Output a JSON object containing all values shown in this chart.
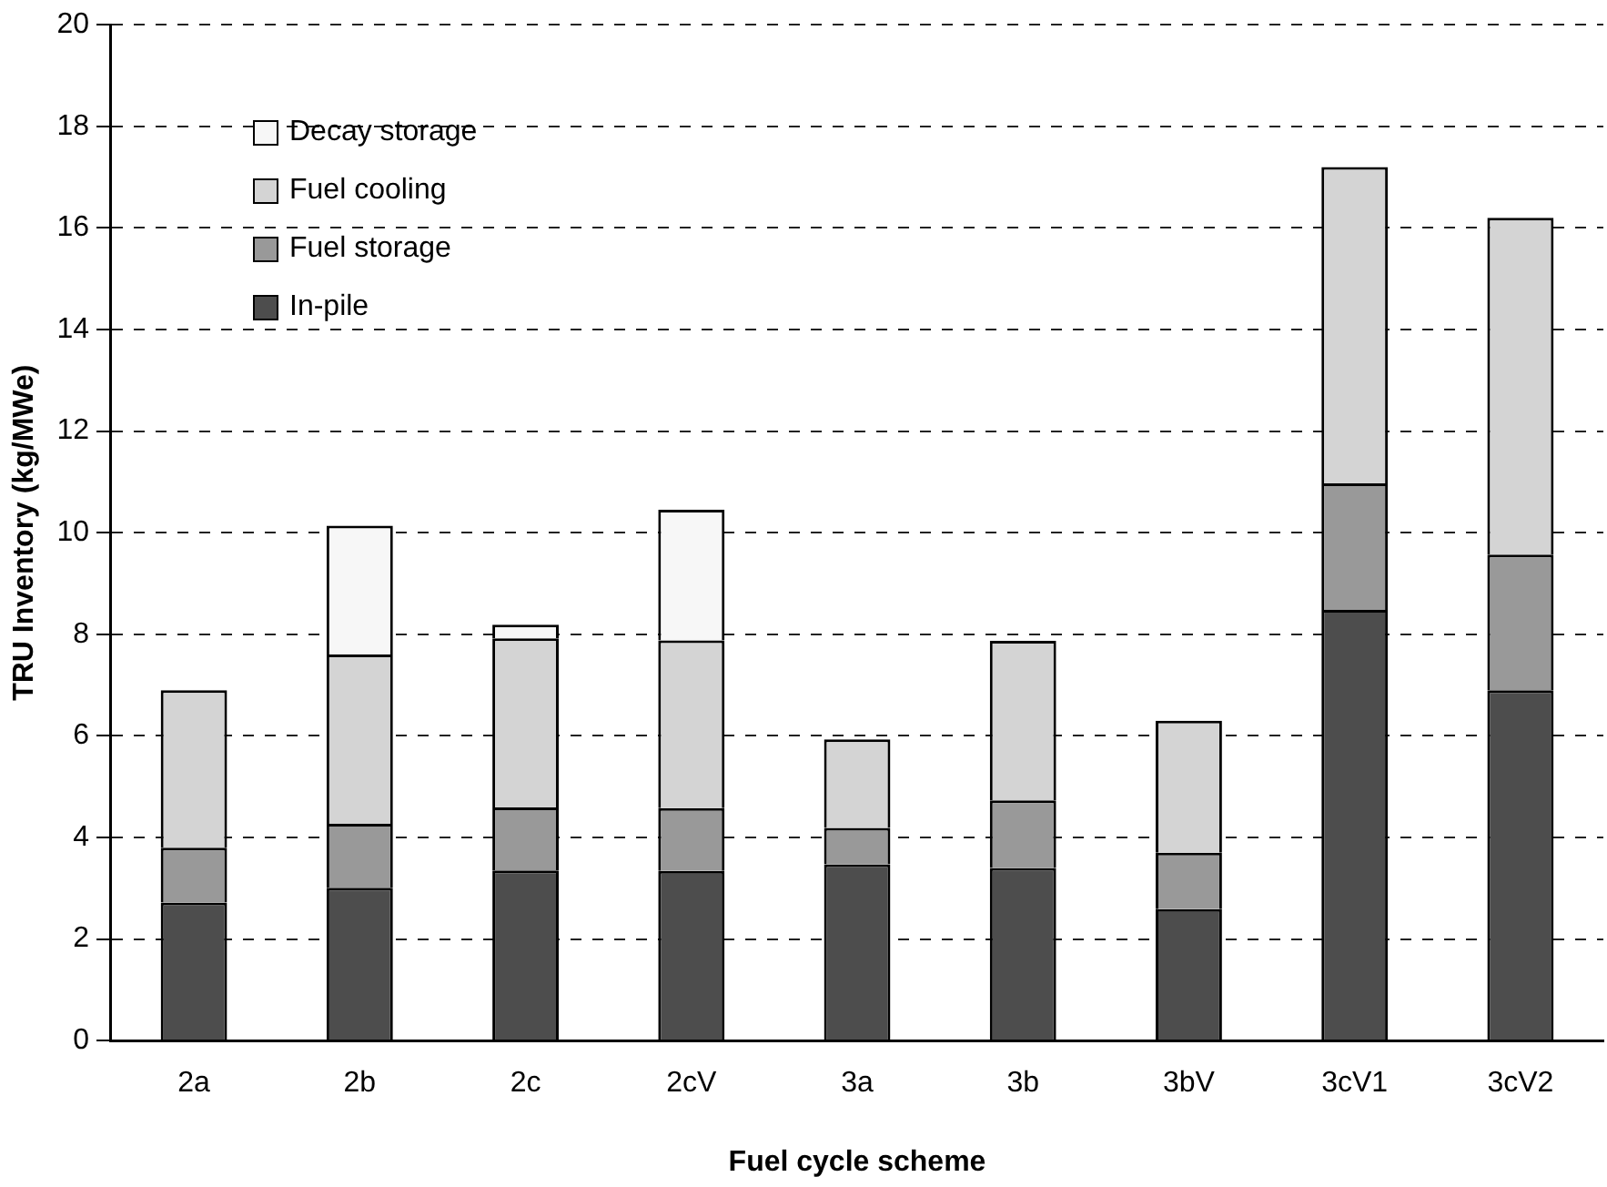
{
  "chart_data": {
    "type": "bar",
    "stacked": true,
    "xlabel": "Fuel cycle scheme",
    "ylabel": "TRU Inventory (kg/MWe)",
    "categories": [
      "2a",
      "2b",
      "2c",
      "2cV",
      "3a",
      "3b",
      "3bV",
      "3cV1",
      "3cV2"
    ],
    "series": [
      {
        "name": "In-pile",
        "color": "#4d4d4d",
        "values": [
          2.72,
          3.01,
          3.35,
          3.34,
          3.47,
          3.4,
          2.59,
          8.48,
          6.9
        ]
      },
      {
        "name": "Fuel storage",
        "color": "#999999",
        "values": [
          1.08,
          1.26,
          1.24,
          1.24,
          0.72,
          1.33,
          1.11,
          2.49,
          2.67
        ]
      },
      {
        "name": "Fuel cooling",
        "color": "#d4d4d4",
        "values": [
          3.1,
          3.33,
          3.33,
          3.3,
          1.74,
          3.14,
          2.6,
          6.23,
          6.63
        ]
      },
      {
        "name": "Decay storage",
        "color": "#f7f7f7",
        "values": [
          null,
          2.54,
          0.27,
          2.57,
          null,
          null,
          null,
          null,
          null
        ]
      }
    ],
    "ylim": [
      0,
      20
    ],
    "yticks": [
      0,
      2,
      4,
      6,
      8,
      10,
      12,
      14,
      16,
      18,
      20
    ],
    "grid": "y",
    "line_style": "dashed",
    "legend": "top left"
  }
}
